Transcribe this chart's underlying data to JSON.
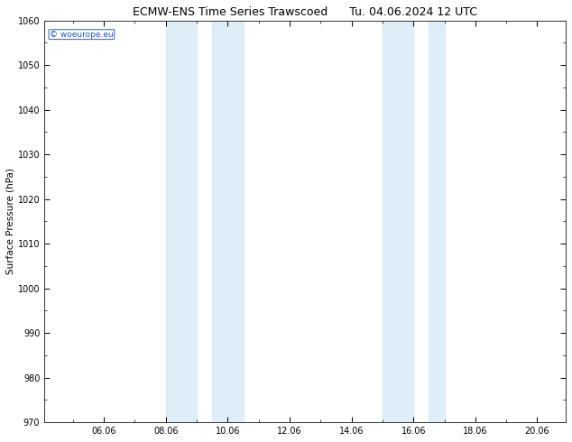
{
  "title_left": "ECMW-ENS Time Series Trawscoed",
  "title_right": "Tu. 04.06.2024 12 UTC",
  "ylabel": "Surface Pressure (hPa)",
  "ylim": [
    970,
    1060
  ],
  "yticks": [
    970,
    980,
    990,
    1000,
    1010,
    1020,
    1030,
    1040,
    1050,
    1060
  ],
  "xlim_start": 4.08,
  "xlim_end": 20.92,
  "xtick_labels": [
    "06.06",
    "08.06",
    "10.06",
    "12.06",
    "14.06",
    "16.06",
    "18.06",
    "20.06"
  ],
  "xtick_positions": [
    6,
    8,
    10,
    12,
    14,
    16,
    18,
    20
  ],
  "shaded_bands": [
    {
      "x_start": 8.0,
      "x_end": 9.0
    },
    {
      "x_start": 9.5,
      "x_end": 10.5
    },
    {
      "x_start": 15.0,
      "x_end": 16.0
    },
    {
      "x_start": 16.5,
      "x_end": 17.0
    }
  ],
  "shade_color": "#ddeef8",
  "background_color": "#ffffff",
  "plot_bg_color": "#ffffff",
  "watermark_text": "© woeurope.eu",
  "watermark_color": "#2255cc",
  "title_fontsize": 9,
  "tick_fontsize": 7,
  "ylabel_fontsize": 7.5,
  "spine_color": "#333333"
}
